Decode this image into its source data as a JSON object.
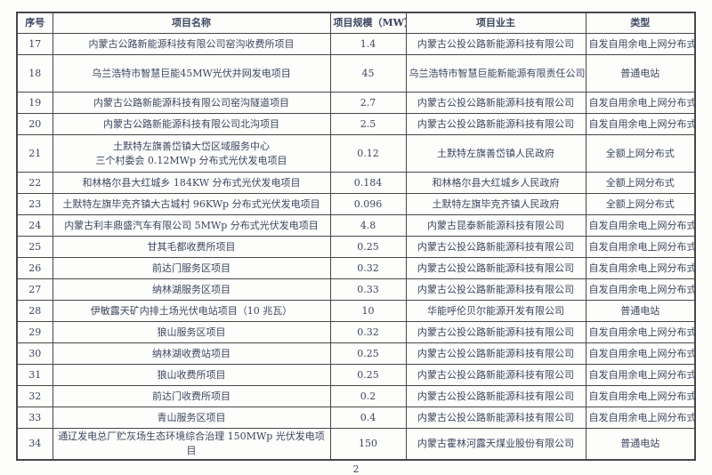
{
  "page": {
    "number": "2"
  },
  "colors": {
    "text": "#3d4660",
    "border": "#474747",
    "background": "#fdfdfb"
  },
  "table": {
    "headers": [
      "序号",
      "项目名称",
      "项目规模（MW）",
      "项目业主",
      "类型"
    ],
    "rows": [
      {
        "id": "17",
        "name_lines": [
          "内蒙古公路新能源科技有限公司窑沟收费所项目"
        ],
        "scale": "1.4",
        "owner": "内蒙古公投公路新能源科技有限公司",
        "type": "自发自用余电上网分布式"
      },
      {
        "id": "18",
        "name_lines": [
          "乌兰浩特市智慧巨能45MW光伏并网发电项目"
        ],
        "scale": "45",
        "owner": "乌兰浩特市智慧巨能新能源有限责任公司",
        "type": "普通电站",
        "tall": true
      },
      {
        "id": "19",
        "name_lines": [
          "内蒙古公路新能源科技有限公司窑沟隧道项目"
        ],
        "scale": "2.7",
        "owner": "内蒙古公投公路新能源科技有限公司",
        "type": "自发自用余电上网分布式"
      },
      {
        "id": "20",
        "name_lines": [
          "内蒙古公路新能源科技有限公司北沟项目"
        ],
        "scale": "2.5",
        "owner": "内蒙古公投公路新能源科技有限公司",
        "type": "自发自用余电上网分布式"
      },
      {
        "id": "21",
        "name_lines": [
          "土默特左旗善岱镇大岱区域服务中心",
          "三个村委会 0.12MWp 分布式光伏发电项目"
        ],
        "scale": "0.12",
        "owner": "土默特左旗善岱镇人民政府",
        "type": "全额上网分布式",
        "tall": true
      },
      {
        "id": "22",
        "name_lines": [
          "和林格尔县大红城乡 184KW 分布式光伏发电项目"
        ],
        "scale": "0.184",
        "owner": "和林格尔县大红城乡人民政府",
        "type": "全额上网分布式"
      },
      {
        "id": "23",
        "name_lines": [
          "土默特左旗毕克齐镇大古城村 96KWp 分布式光伏发电项目"
        ],
        "scale": "0.096",
        "owner": "土默特左旗毕克齐镇人民政府",
        "type": "全额上网分布式"
      },
      {
        "id": "24",
        "name_lines": [
          "内蒙古利丰鼎盛汽车有限公司 5MWp 分布式光伏发电项目"
        ],
        "scale": "4.8",
        "owner": "内蒙古昆泰新能源科技有限公司",
        "type": "自发自用余电上网分布式"
      },
      {
        "id": "25",
        "name_lines": [
          "甘其毛都收费所项目"
        ],
        "scale": "0.25",
        "owner": "内蒙古公投公路新能源科技有限公司",
        "type": "自发自用余电上网分布式"
      },
      {
        "id": "26",
        "name_lines": [
          "前达门服务区项目"
        ],
        "scale": "0.32",
        "owner": "内蒙古公投公路新能源科技有限公司",
        "type": "自发自用余电上网分布式"
      },
      {
        "id": "27",
        "name_lines": [
          "纳林湖服务区项目"
        ],
        "scale": "0.33",
        "owner": "内蒙古公投公路新能源科技有限公司",
        "type": "自发自用余电上网分布式"
      },
      {
        "id": "28",
        "name_lines": [
          "伊敏露天矿内排土场光伏电站项目（10 兆瓦）"
        ],
        "scale": "10",
        "owner": "华能呼伦贝尔能源开发有限公司",
        "type": "普通电站"
      },
      {
        "id": "29",
        "name_lines": [
          "狼山服务区项目"
        ],
        "scale": "0.32",
        "owner": "内蒙古公投公路新能源科技有限公司",
        "type": "自发自用余电上网分布式"
      },
      {
        "id": "30",
        "name_lines": [
          "纳林湖收费站项目"
        ],
        "scale": "0.25",
        "owner": "内蒙古公投公路新能源科技有限公司",
        "type": "自发自用余电上网分布式"
      },
      {
        "id": "31",
        "name_lines": [
          "狼山收费所项目"
        ],
        "scale": "0.25",
        "owner": "内蒙古公投公路新能源科技有限公司",
        "type": "自发自用余电上网分布式"
      },
      {
        "id": "32",
        "name_lines": [
          "前达门收费所项目"
        ],
        "scale": "0.2",
        "owner": "内蒙古公投公路新能源科技有限公司",
        "type": "自发自用余电上网分布式"
      },
      {
        "id": "33",
        "name_lines": [
          "青山服务区项目"
        ],
        "scale": "0.4",
        "owner": "内蒙古公投公路新能源科技有限公司",
        "type": "自发自用余电上网分布式"
      },
      {
        "id": "34",
        "name_lines": [
          "通辽发电总厂贮灰场生态环境综合治理 150MWp 光伏发电项目"
        ],
        "scale": "150",
        "owner": "内蒙古霍林河露天煤业股份有限公司",
        "type": "普通电站"
      }
    ]
  }
}
